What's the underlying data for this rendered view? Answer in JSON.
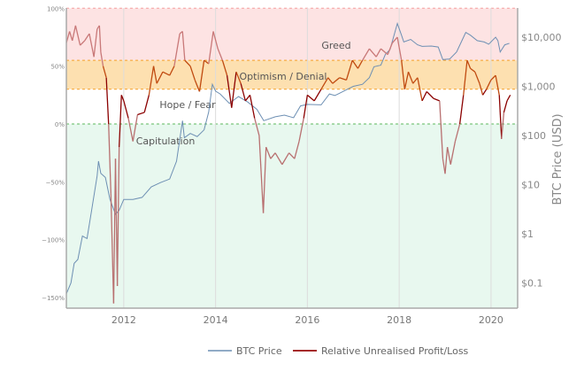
{
  "chart_data": {
    "type": "line",
    "title": "",
    "xlabel": "",
    "ylabel_left": "",
    "ylabel_right": "BTC Price (USD)",
    "xlim": [
      2010.75,
      2020.58
    ],
    "ylim_left": [
      -160,
      100
    ],
    "ylim_right_log": [
      0.025,
      50000
    ],
    "x_ticks": [
      2012,
      2014,
      2016,
      2018,
      2020
    ],
    "x_tick_labels": [
      "2012",
      "2014",
      "2016",
      "2018",
      "2020"
    ],
    "left_ticks": [
      100,
      50,
      0,
      -50,
      -100,
      -150
    ],
    "left_tick_labels": [
      "100%",
      "50%",
      "0%",
      "−50%",
      "−100%",
      "−150%"
    ],
    "right_ticks": [
      10000,
      1000,
      100,
      10,
      1,
      0.1
    ],
    "right_tick_labels": [
      "$10,000",
      "$1,000",
      "$100",
      "$10",
      "$1",
      "$0.1"
    ],
    "grid": "vertical",
    "zones": [
      {
        "label": "Greed",
        "from": 55,
        "to": 100,
        "color": "#fde3e3",
        "line_color": "#f4a0a0"
      },
      {
        "label": "Optimism / Denial",
        "from": 30,
        "to": 55,
        "color": "#fde0b0",
        "line_color": "#f5a02a"
      },
      {
        "label": "Hope / Fear",
        "from": 0,
        "to": 30,
        "color": "#ffffff",
        "line_color": "#f5a02a"
      },
      {
        "label": "Capitulation",
        "from": -160,
        "to": 0,
        "color": "#e8f8ef",
        "line_color": "#5cb85c"
      }
    ],
    "legend_position": "bottom",
    "series": [
      {
        "name": "BTC Price",
        "axis": "right",
        "color": "#6d8fb3",
        "points": [
          [
            2010.75,
            0.06
          ],
          [
            2010.85,
            0.1
          ],
          [
            2010.92,
            0.25
          ],
          [
            2011.0,
            0.3
          ],
          [
            2011.1,
            0.9
          ],
          [
            2011.2,
            0.8
          ],
          [
            2011.3,
            3
          ],
          [
            2011.42,
            15
          ],
          [
            2011.45,
            30
          ],
          [
            2011.5,
            17
          ],
          [
            2011.6,
            14
          ],
          [
            2011.7,
            5
          ],
          [
            2011.82,
            2.5
          ],
          [
            2011.9,
            3
          ],
          [
            2012.0,
            5
          ],
          [
            2012.2,
            5
          ],
          [
            2012.4,
            5.5
          ],
          [
            2012.6,
            9
          ],
          [
            2012.8,
            11
          ],
          [
            2013.0,
            13
          ],
          [
            2013.15,
            30
          ],
          [
            2013.28,
            200
          ],
          [
            2013.32,
            90
          ],
          [
            2013.45,
            110
          ],
          [
            2013.6,
            95
          ],
          [
            2013.75,
            130
          ],
          [
            2013.85,
            300
          ],
          [
            2013.93,
            1100
          ],
          [
            2014.0,
            800
          ],
          [
            2014.1,
            700
          ],
          [
            2014.3,
            450
          ],
          [
            2014.5,
            620
          ],
          [
            2014.7,
            480
          ],
          [
            2014.9,
            340
          ],
          [
            2015.05,
            200
          ],
          [
            2015.3,
            240
          ],
          [
            2015.5,
            260
          ],
          [
            2015.7,
            230
          ],
          [
            2015.85,
            400
          ],
          [
            2016.0,
            430
          ],
          [
            2016.3,
            420
          ],
          [
            2016.48,
            700
          ],
          [
            2016.6,
            650
          ],
          [
            2016.9,
            900
          ],
          [
            2017.0,
            1000
          ],
          [
            2017.2,
            1100
          ],
          [
            2017.35,
            1500
          ],
          [
            2017.45,
            2500
          ],
          [
            2017.6,
            2700
          ],
          [
            2017.7,
            4500
          ],
          [
            2017.8,
            5600
          ],
          [
            2017.96,
            19000
          ],
          [
            2018.05,
            11000
          ],
          [
            2018.1,
            8000
          ],
          [
            2018.25,
            9000
          ],
          [
            2018.4,
            7000
          ],
          [
            2018.5,
            6500
          ],
          [
            2018.7,
            6600
          ],
          [
            2018.85,
            6300
          ],
          [
            2018.95,
            3500
          ],
          [
            2019.1,
            3600
          ],
          [
            2019.25,
            5000
          ],
          [
            2019.45,
            12500
          ],
          [
            2019.55,
            11000
          ],
          [
            2019.7,
            8500
          ],
          [
            2019.85,
            8000
          ],
          [
            2019.95,
            7200
          ],
          [
            2020.1,
            10000
          ],
          [
            2020.15,
            8500
          ],
          [
            2020.2,
            5000
          ],
          [
            2020.3,
            7000
          ],
          [
            2020.4,
            7500
          ]
        ]
      },
      {
        "name": "Relative Unrealised Profit/Loss",
        "axis": "left",
        "color": "#a52a2a",
        "points": [
          [
            2010.75,
            70
          ],
          [
            2010.82,
            80
          ],
          [
            2010.88,
            72
          ],
          [
            2010.95,
            85
          ],
          [
            2011.05,
            68
          ],
          [
            2011.15,
            72
          ],
          [
            2011.25,
            78
          ],
          [
            2011.35,
            58
          ],
          [
            2011.42,
            82
          ],
          [
            2011.47,
            85
          ],
          [
            2011.5,
            62
          ],
          [
            2011.55,
            50
          ],
          [
            2011.62,
            40
          ],
          [
            2011.67,
            0
          ],
          [
            2011.72,
            -60
          ],
          [
            2011.78,
            -155
          ],
          [
            2011.82,
            -30
          ],
          [
            2011.86,
            -140
          ],
          [
            2011.9,
            -20
          ],
          [
            2011.95,
            25
          ],
          [
            2012.0,
            20
          ],
          [
            2012.1,
            5
          ],
          [
            2012.2,
            -15
          ],
          [
            2012.3,
            8
          ],
          [
            2012.45,
            10
          ],
          [
            2012.55,
            25
          ],
          [
            2012.65,
            50
          ],
          [
            2012.72,
            35
          ],
          [
            2012.85,
            45
          ],
          [
            2013.0,
            42
          ],
          [
            2013.1,
            50
          ],
          [
            2013.22,
            78
          ],
          [
            2013.28,
            80
          ],
          [
            2013.33,
            55
          ],
          [
            2013.45,
            50
          ],
          [
            2013.55,
            38
          ],
          [
            2013.65,
            28
          ],
          [
            2013.75,
            55
          ],
          [
            2013.85,
            52
          ],
          [
            2013.95,
            80
          ],
          [
            2014.05,
            65
          ],
          [
            2014.15,
            55
          ],
          [
            2014.25,
            42
          ],
          [
            2014.35,
            14
          ],
          [
            2014.45,
            45
          ],
          [
            2014.55,
            35
          ],
          [
            2014.65,
            20
          ],
          [
            2014.75,
            25
          ],
          [
            2014.85,
            5
          ],
          [
            2014.95,
            -10
          ],
          [
            2015.04,
            -77
          ],
          [
            2015.1,
            -20
          ],
          [
            2015.2,
            -30
          ],
          [
            2015.3,
            -25
          ],
          [
            2015.45,
            -35
          ],
          [
            2015.6,
            -25
          ],
          [
            2015.72,
            -30
          ],
          [
            2015.82,
            -15
          ],
          [
            2015.92,
            5
          ],
          [
            2016.0,
            25
          ],
          [
            2016.15,
            20
          ],
          [
            2016.3,
            30
          ],
          [
            2016.45,
            40
          ],
          [
            2016.55,
            35
          ],
          [
            2016.7,
            40
          ],
          [
            2016.85,
            38
          ],
          [
            2016.98,
            55
          ],
          [
            2017.1,
            48
          ],
          [
            2017.2,
            55
          ],
          [
            2017.35,
            65
          ],
          [
            2017.5,
            58
          ],
          [
            2017.6,
            65
          ],
          [
            2017.75,
            60
          ],
          [
            2017.85,
            70
          ],
          [
            2017.96,
            75
          ],
          [
            2018.05,
            55
          ],
          [
            2018.12,
            30
          ],
          [
            2018.2,
            45
          ],
          [
            2018.3,
            35
          ],
          [
            2018.4,
            40
          ],
          [
            2018.5,
            20
          ],
          [
            2018.6,
            28
          ],
          [
            2018.75,
            22
          ],
          [
            2018.88,
            20
          ],
          [
            2018.95,
            -30
          ],
          [
            2019.0,
            -43
          ],
          [
            2019.05,
            -20
          ],
          [
            2019.12,
            -35
          ],
          [
            2019.22,
            -15
          ],
          [
            2019.32,
            0
          ],
          [
            2019.4,
            25
          ],
          [
            2019.48,
            55
          ],
          [
            2019.55,
            48
          ],
          [
            2019.65,
            45
          ],
          [
            2019.75,
            35
          ],
          [
            2019.82,
            25
          ],
          [
            2019.9,
            30
          ],
          [
            2020.0,
            38
          ],
          [
            2020.1,
            42
          ],
          [
            2020.18,
            25
          ],
          [
            2020.23,
            -13
          ],
          [
            2020.28,
            10
          ],
          [
            2020.35,
            20
          ],
          [
            2020.42,
            25
          ]
        ]
      }
    ]
  }
}
